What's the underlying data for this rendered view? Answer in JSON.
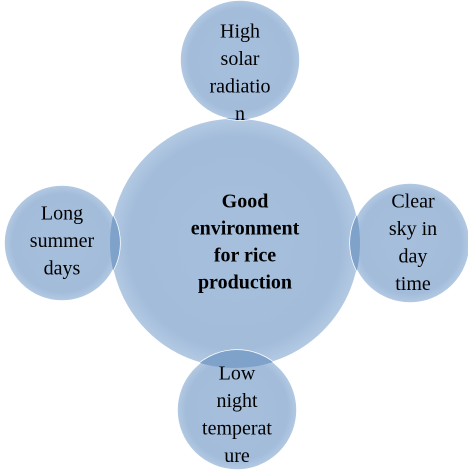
{
  "center": {
    "lines": [
      "Good",
      "environment",
      "for rice",
      "production"
    ]
  },
  "nodes": [
    {
      "lines": [
        "High",
        "solar",
        "radiatio",
        "n"
      ]
    },
    {
      "lines": [
        "Clear",
        "sky in",
        "day",
        "time"
      ]
    },
    {
      "lines": [
        "Low",
        "night",
        "temperat",
        "ure"
      ]
    },
    {
      "lines": [
        "Long",
        "summer",
        "days"
      ]
    }
  ]
}
